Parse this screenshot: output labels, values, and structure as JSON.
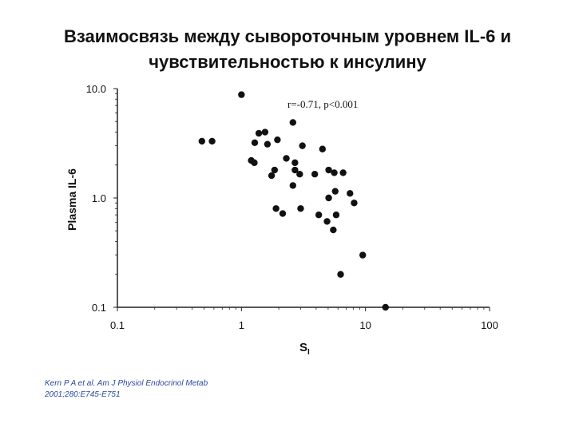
{
  "title": {
    "line1": "Взаимосвязь между сывороточным уровнем IL-6 и",
    "line2": "чувствительностью к инсулину"
  },
  "citation": {
    "line1": "Kern P A et al. Am J Physiol Endocrinol Metab",
    "line2": "2001;280:E745-E751"
  },
  "chart_data": {
    "type": "scatter",
    "xlabel": "S",
    "xlabel_subscript": "I",
    "ylabel": "Plasma IL-6",
    "x_scale": "log",
    "y_scale": "log",
    "xlim": [
      0.1,
      100
    ],
    "ylim": [
      0.1,
      10
    ],
    "x_ticks": [
      0.1,
      1,
      10,
      100
    ],
    "x_tick_labels": [
      "0.1",
      "1",
      "10",
      "100"
    ],
    "y_ticks": [
      0.1,
      1.0,
      10.0
    ],
    "y_tick_labels": [
      "0.1",
      "1.0",
      "10.0"
    ],
    "grid": false,
    "annotation": "r=-0.71, p<0.001",
    "marker_color": "#111111",
    "points": [
      {
        "x": 1.0,
        "y": 8.8
      },
      {
        "x": 0.48,
        "y": 3.3
      },
      {
        "x": 0.58,
        "y": 3.3
      },
      {
        "x": 1.28,
        "y": 3.2
      },
      {
        "x": 1.38,
        "y": 3.9
      },
      {
        "x": 1.55,
        "y": 4.0
      },
      {
        "x": 1.62,
        "y": 3.1
      },
      {
        "x": 1.95,
        "y": 3.4
      },
      {
        "x": 2.6,
        "y": 4.9
      },
      {
        "x": 3.1,
        "y": 3.0
      },
      {
        "x": 4.5,
        "y": 2.8
      },
      {
        "x": 1.2,
        "y": 2.2
      },
      {
        "x": 1.27,
        "y": 2.1
      },
      {
        "x": 1.85,
        "y": 1.8
      },
      {
        "x": 1.75,
        "y": 1.6
      },
      {
        "x": 2.3,
        "y": 2.3
      },
      {
        "x": 2.7,
        "y": 2.1
      },
      {
        "x": 2.7,
        "y": 1.8
      },
      {
        "x": 2.95,
        "y": 1.65
      },
      {
        "x": 2.6,
        "y": 1.3
      },
      {
        "x": 3.9,
        "y": 1.65
      },
      {
        "x": 5.05,
        "y": 1.8
      },
      {
        "x": 5.6,
        "y": 1.7
      },
      {
        "x": 6.6,
        "y": 1.7
      },
      {
        "x": 5.7,
        "y": 1.15
      },
      {
        "x": 7.5,
        "y": 1.1
      },
      {
        "x": 5.05,
        "y": 1.0
      },
      {
        "x": 8.1,
        "y": 0.9
      },
      {
        "x": 1.9,
        "y": 0.8
      },
      {
        "x": 2.15,
        "y": 0.72
      },
      {
        "x": 3.0,
        "y": 0.8
      },
      {
        "x": 4.2,
        "y": 0.7
      },
      {
        "x": 4.9,
        "y": 0.61
      },
      {
        "x": 5.8,
        "y": 0.7
      },
      {
        "x": 5.5,
        "y": 0.51
      },
      {
        "x": 9.5,
        "y": 0.3
      },
      {
        "x": 6.3,
        "y": 0.2
      },
      {
        "x": 14.5,
        "y": 0.1
      }
    ]
  }
}
